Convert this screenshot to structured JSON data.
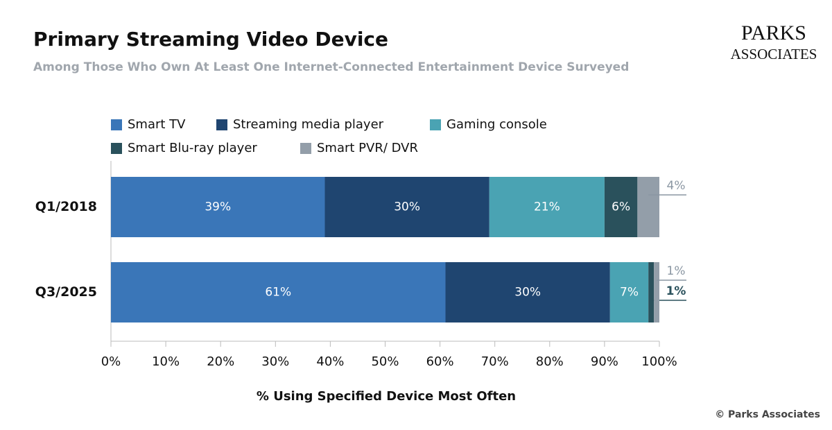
{
  "chart_data": {
    "type": "stacked-barh",
    "title": "Primary Streaming Video Device",
    "subtitle": "Among Those Who Own At Least One Internet-Connected Entertainment Device Surveyed",
    "logo": [
      "PARKS",
      "ASSOCIATES"
    ],
    "copyright": "© Parks Associates",
    "x_label": "% Using Specified Device Most Often",
    "categories": [
      "Q1/2018",
      "Q3/2025"
    ],
    "series": [
      {
        "name": "Smart TV",
        "color": "#3a76b8",
        "values": [
          39,
          61
        ],
        "value_labels": [
          "39%",
          "61%"
        ]
      },
      {
        "name": "Streaming media player",
        "color": "#1f4570",
        "values": [
          30,
          30
        ],
        "value_labels": [
          "30%",
          "30%"
        ]
      },
      {
        "name": "Gaming console",
        "color": "#4aa3b3",
        "values": [
          21,
          7
        ],
        "value_labels": [
          "21%",
          "7%"
        ]
      },
      {
        "name": "Smart Blu-ray player",
        "color": "#2a515c",
        "values": [
          6,
          1
        ],
        "value_labels": [
          "6%",
          "1%"
        ]
      },
      {
        "name": "Smart PVR/ DVR",
        "color": "#939ea9",
        "values": [
          4,
          1
        ],
        "value_labels": [
          "4%",
          "1%"
        ]
      }
    ],
    "xlim": [
      0,
      100
    ],
    "xticks": [
      {
        "value": 0,
        "label": "0%"
      },
      {
        "value": 10,
        "label": "10%"
      },
      {
        "value": 20,
        "label": "20%"
      },
      {
        "value": 30,
        "label": "30%"
      },
      {
        "value": 40,
        "label": "40%"
      },
      {
        "value": 50,
        "label": "50%"
      },
      {
        "value": 60,
        "label": "60%"
      },
      {
        "value": 70,
        "label": "70%"
      },
      {
        "value": 80,
        "label": "80%"
      },
      {
        "value": 90,
        "label": "90%"
      },
      {
        "value": 100,
        "label": "100%"
      }
    ]
  }
}
